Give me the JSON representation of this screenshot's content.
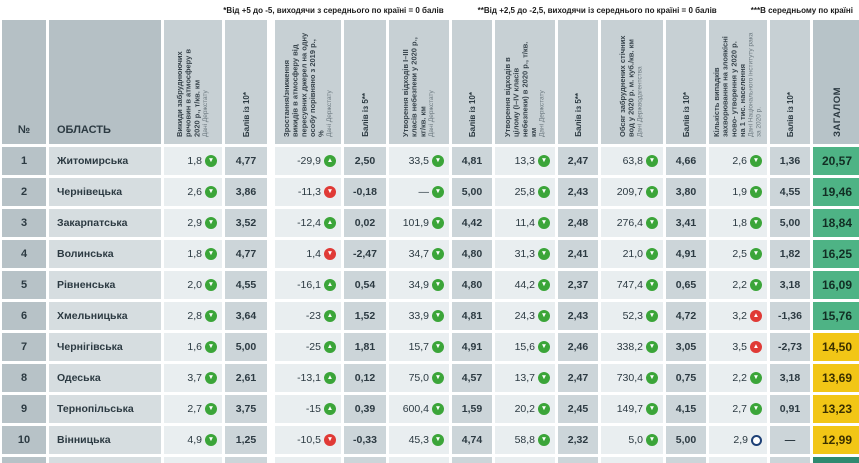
{
  "colors": {
    "icon_green": "#3ba539",
    "icon_red": "#e03a36",
    "icon_neutral_border": "#1d4076",
    "total_green_bg": "#4eb385",
    "total_yellow_bg": "#f2c616",
    "partial_total_bg": "#2f8a70"
  },
  "chart_data": {
    "type": "table",
    "footnotes": {
      "scale10": "*Від +5 до -5, виходячи з середнього по країні = 0 балів",
      "scale5": "**Від +2,5 до -2,5, виходячи із середнього по країні = 0 балів",
      "average": "***В середньому по країні"
    },
    "number_header": "№",
    "region_header": "ОБЛАСТЬ",
    "total_header": "ЗАГАЛОМ",
    "icon_legend": {
      "gd": "arrow-down-green-icon",
      "gu": "arrow-up-green-icon",
      "rd": "arrow-down-red-icon",
      "ru": "arrow-up-red-icon",
      "oc": "circle-outline-icon"
    },
    "metrics": [
      {
        "title": "Викиди забруднюючих речовин в атмосферу в 2020 р., т/кв. км",
        "source": "Дані Держстату",
        "score_header": "Балів із 10*"
      },
      {
        "title": "Зростання/зниження викидів в атмосферу від пересувних джерел на одну особу порівняно з 2019 р., %",
        "source": "Дані Держстату",
        "score_header": "Балів із 5**"
      },
      {
        "title": "Утворення відходів І–ІІІ класів небезпеки у 2020 р., кг/кв. км",
        "source": "Дані Держстату",
        "score_header": "Балів із 10*"
      },
      {
        "title": "Утворення відходів в цілому (І–IV класів небезпеки) в 2020 р., т/кв. км",
        "source": "Дані Держстату",
        "score_header": "Балів із 5**"
      },
      {
        "title": "Обсяг забруднених стічних вод у 2020 р. м. куб./кв. км",
        "source": "Дані Держводагентства",
        "score_header": "Балів із 10*"
      },
      {
        "title": "Кількість випадків захворювання на злоякісні ново- утворення у 2020 р. на 1 тис. населення",
        "source": "Дані Національного інституту рака за 2020 р.",
        "score_header": "Балів із 10*"
      }
    ],
    "rows": [
      {
        "rank": "1",
        "region": "Житомирська",
        "metrics": [
          [
            "1,8",
            "gd",
            "4,77"
          ],
          [
            "-29,9",
            "gu",
            "2,50"
          ],
          [
            "33,5",
            "gd",
            "4,81"
          ],
          [
            "13,3",
            "gd",
            "2,47"
          ],
          [
            "63,8",
            "gd",
            "4,66"
          ],
          [
            "2,6",
            "gd",
            "1,36"
          ]
        ],
        "total": "20,57",
        "total_color": "green"
      },
      {
        "rank": "2",
        "region": "Чернівецька",
        "metrics": [
          [
            "2,6",
            "gd",
            "3,86"
          ],
          [
            "-11,3",
            "rd",
            "-0,18"
          ],
          [
            "—",
            "gd",
            "5,00"
          ],
          [
            "25,8",
            "gd",
            "2,43"
          ],
          [
            "209,7",
            "gd",
            "3,80"
          ],
          [
            "1,9",
            "gd",
            "4,55"
          ]
        ],
        "total": "19,46",
        "total_color": "green"
      },
      {
        "rank": "3",
        "region": "Закарпатська",
        "metrics": [
          [
            "2,9",
            "gd",
            "3,52"
          ],
          [
            "-12,4",
            "gu",
            "0,02"
          ],
          [
            "101,9",
            "gd",
            "4,42"
          ],
          [
            "11,4",
            "gd",
            "2,48"
          ],
          [
            "276,4",
            "gd",
            "3,41"
          ],
          [
            "1,8",
            "gd",
            "5,00"
          ]
        ],
        "total": "18,84",
        "total_color": "green"
      },
      {
        "rank": "4",
        "region": "Волинська",
        "metrics": [
          [
            "1,8",
            "gd",
            "4,77"
          ],
          [
            "1,4",
            "rd",
            "-2,47"
          ],
          [
            "34,7",
            "gd",
            "4,80"
          ],
          [
            "31,3",
            "gd",
            "2,41"
          ],
          [
            "21,0",
            "gd",
            "4,91"
          ],
          [
            "2,5",
            "gd",
            "1,82"
          ]
        ],
        "total": "16,25",
        "total_color": "green"
      },
      {
        "rank": "5",
        "region": "Рівненська",
        "metrics": [
          [
            "2,0",
            "gd",
            "4,55"
          ],
          [
            "-16,1",
            "gu",
            "0,54"
          ],
          [
            "34,9",
            "gd",
            "4,80"
          ],
          [
            "44,2",
            "gd",
            "2,37"
          ],
          [
            "747,4",
            "gd",
            "0,65"
          ],
          [
            "2,2",
            "gd",
            "3,18"
          ]
        ],
        "total": "16,09",
        "total_color": "green"
      },
      {
        "rank": "6",
        "region": "Хмельницька",
        "metrics": [
          [
            "2,8",
            "gd",
            "3,64"
          ],
          [
            "-23",
            "gu",
            "1,52"
          ],
          [
            "33,9",
            "gd",
            "4,81"
          ],
          [
            "24,3",
            "gd",
            "2,43"
          ],
          [
            "52,3",
            "gd",
            "4,72"
          ],
          [
            "3,2",
            "ru",
            "-1,36"
          ]
        ],
        "total": "15,76",
        "total_color": "green"
      },
      {
        "rank": "7",
        "region": "Чернігівська",
        "metrics": [
          [
            "1,6",
            "gd",
            "5,00"
          ],
          [
            "-25",
            "gu",
            "1,81"
          ],
          [
            "15,7",
            "gd",
            "4,91"
          ],
          [
            "15,6",
            "gd",
            "2,46"
          ],
          [
            "338,2",
            "gd",
            "3,05"
          ],
          [
            "3,5",
            "ru",
            "-2,73"
          ]
        ],
        "total": "14,50",
        "total_color": "yellow"
      },
      {
        "rank": "8",
        "region": "Одеська",
        "metrics": [
          [
            "3,7",
            "gd",
            "2,61"
          ],
          [
            "-13,1",
            "gu",
            "0,12"
          ],
          [
            "75,0",
            "gd",
            "4,57"
          ],
          [
            "13,7",
            "gd",
            "2,47"
          ],
          [
            "730,4",
            "gd",
            "0,75"
          ],
          [
            "2,2",
            "gd",
            "3,18"
          ]
        ],
        "total": "13,69",
        "total_color": "yellow"
      },
      {
        "rank": "9",
        "region": "Тернопільська",
        "metrics": [
          [
            "2,7",
            "gd",
            "3,75"
          ],
          [
            "-15",
            "gu",
            "0,39"
          ],
          [
            "600,4",
            "gd",
            "1,59"
          ],
          [
            "20,2",
            "gd",
            "2,45"
          ],
          [
            "149,7",
            "gd",
            "4,15"
          ],
          [
            "2,7",
            "gd",
            "0,91"
          ]
        ],
        "total": "13,23",
        "total_color": "yellow"
      },
      {
        "rank": "10",
        "region": "Вінницька",
        "metrics": [
          [
            "4,9",
            "gd",
            "1,25"
          ],
          [
            "-10,5",
            "rd",
            "-0,33"
          ],
          [
            "45,3",
            "gd",
            "4,74"
          ],
          [
            "58,8",
            "gd",
            "2,32"
          ],
          [
            "5,0",
            "gd",
            "5,00"
          ],
          [
            "2,9",
            "oc",
            "—"
          ]
        ],
        "total": "12,99",
        "total_color": "yellow"
      }
    ]
  }
}
